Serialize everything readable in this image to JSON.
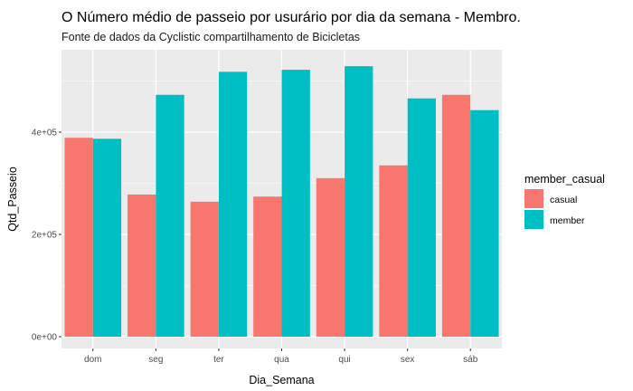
{
  "chart_data": {
    "type": "bar",
    "title": "O Número médio de passeio por usurário por dia da semana - Membro.",
    "subtitle": "Fonte de dados da Cyclistic compartilhamento de Bicicletas",
    "xlabel": "Dia_Semana",
    "ylabel": "Qtd_Passeio",
    "categories": [
      "dom",
      "seg",
      "ter",
      "qua",
      "qui",
      "sex",
      "sáb"
    ],
    "ylim": [
      0,
      530000
    ],
    "yticks": [
      0,
      200000,
      400000
    ],
    "ytick_labels": [
      "0e+00",
      "2e+05",
      "4e+05"
    ],
    "grid": true,
    "legend": {
      "title": "member_casual",
      "position": "right"
    },
    "series": [
      {
        "name": "casual",
        "color": "#F8766D",
        "values": [
          389000,
          278000,
          264000,
          274000,
          310000,
          335000,
          473000
        ]
      },
      {
        "name": "member",
        "color": "#00BFC4",
        "values": [
          387000,
          473000,
          518000,
          522000,
          529000,
          466000,
          443000
        ]
      }
    ],
    "panel_background": "#EBEBEB",
    "grid_color": "#FFFFFF"
  }
}
